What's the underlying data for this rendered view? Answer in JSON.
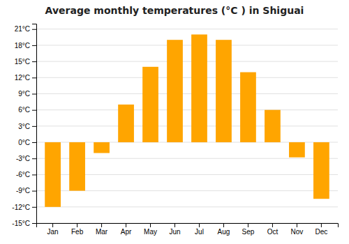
{
  "chart_data": {
    "type": "bar",
    "title": "Average monthly temperatures (°C ) in Shiguai",
    "categories": [
      "Jan",
      "Feb",
      "Mar",
      "Apr",
      "May",
      "Jun",
      "Jul",
      "Aug",
      "Sep",
      "Oct",
      "Nov",
      "Dec"
    ],
    "values": [
      -12,
      -9,
      -2,
      7,
      14,
      19,
      20,
      19,
      13,
      6,
      -2.8,
      -10.5
    ],
    "color": "#FFA500",
    "ylim": [
      -15,
      22
    ],
    "yticks": [
      {
        "value": -15,
        "label": "-15°C"
      },
      {
        "value": -12,
        "label": "-12°C"
      },
      {
        "value": -9,
        "label": "-9°C"
      },
      {
        "value": -6,
        "label": "-6°C"
      },
      {
        "value": -3,
        "label": "-3°C"
      },
      {
        "value": 0,
        "label": "0°C"
      },
      {
        "value": 3,
        "label": "3°C"
      },
      {
        "value": 6,
        "label": "6°C"
      },
      {
        "value": 9,
        "label": "9°C"
      },
      {
        "value": 12,
        "label": "12°C"
      },
      {
        "value": 15,
        "label": "15°C"
      },
      {
        "value": 18,
        "label": "18°C"
      },
      {
        "value": 21,
        "label": "21°C"
      }
    ],
    "grid": true
  }
}
